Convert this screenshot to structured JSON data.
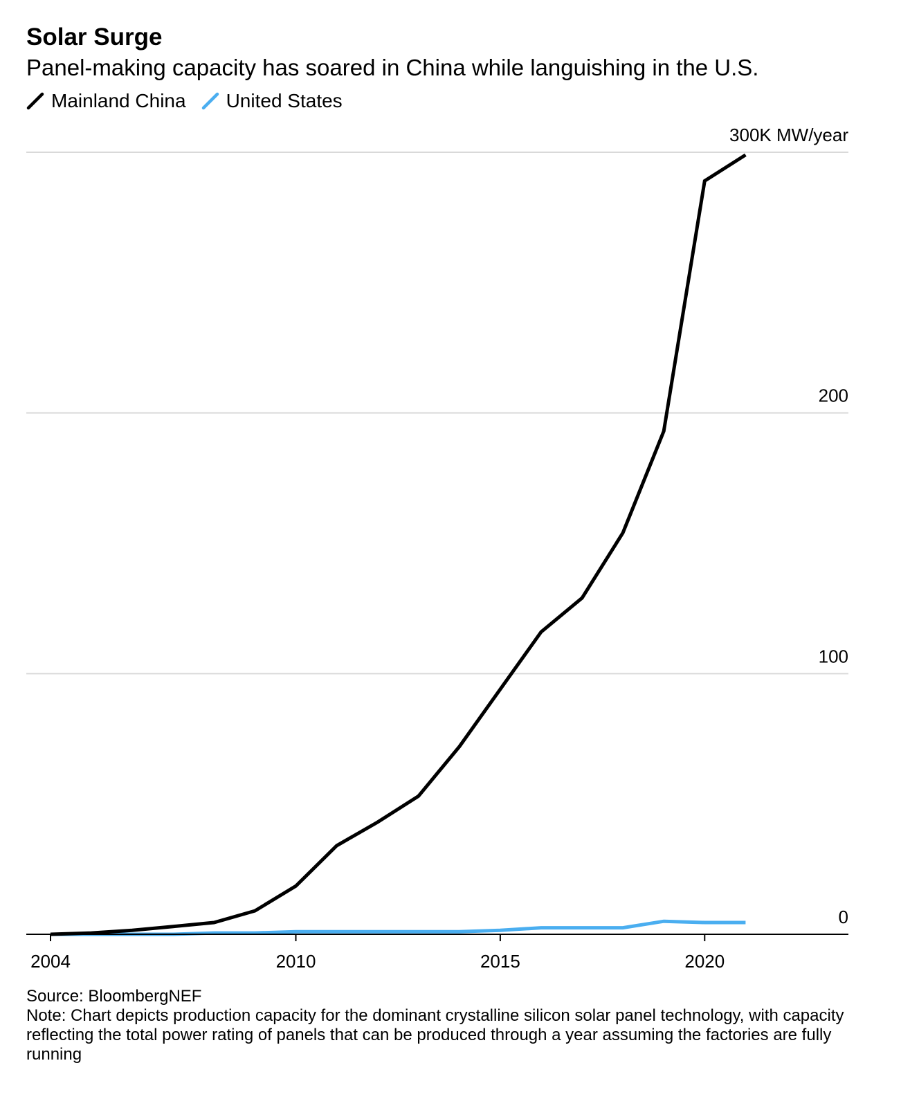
{
  "header": {
    "title": "Solar Surge",
    "subtitle": "Panel-making capacity has soared in China while languishing in the U.S."
  },
  "legend": [
    {
      "label": "Mainland China",
      "color": "#000000",
      "icon": "slash-line-icon"
    },
    {
      "label": "United States",
      "color": "#4aaef0",
      "icon": "slash-line-icon"
    }
  ],
  "footer": {
    "source": "Source: BloombergNEF",
    "note": "Note: Chart depicts production capacity for the dominant crystalline silicon solar panel technology, with capacity reflecting the total power rating of panels that can be produced through a year assuming the factories are fully running"
  },
  "chart_data": {
    "type": "line",
    "title": "Solar Surge",
    "subtitle": "Panel-making capacity has soared in China while languishing in the U.S.",
    "xlim": [
      2004,
      2022.5
    ],
    "ylim": [
      0,
      300
    ],
    "x_ticks": [
      2004,
      2010,
      2015,
      2020
    ],
    "y_ticks": [
      0,
      100,
      200,
      300
    ],
    "y_tick_labels": [
      "0",
      "100",
      "200",
      "300K MW/year"
    ],
    "grid": true,
    "legend_position": "top-left",
    "x": [
      2004,
      2005,
      2006,
      2007,
      2008,
      2009,
      2010,
      2011,
      2012,
      2013,
      2014,
      2015,
      2016,
      2017,
      2018,
      2019,
      2020,
      2021
    ],
    "series": [
      {
        "name": "Mainland China",
        "color": "#000000",
        "values": [
          0,
          0.5,
          1.5,
          3,
          4.5,
          9,
          18.5,
          34,
          43,
          53,
          72,
          94,
          116,
          129,
          154,
          193,
          289,
          299
        ]
      },
      {
        "name": "United States",
        "color": "#4aaef0",
        "values": [
          0,
          0,
          0,
          0,
          0.5,
          0.5,
          1,
          1,
          1,
          1,
          1,
          1.5,
          2.5,
          2.5,
          2.5,
          5,
          4.5,
          4.5
        ]
      }
    ],
    "source": "Source: BloombergNEF"
  }
}
